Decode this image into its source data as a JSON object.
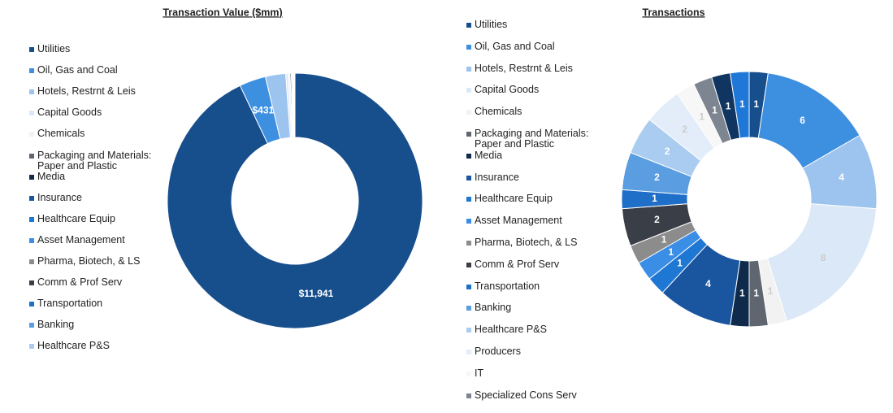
{
  "chart_data": [
    {
      "type": "donut",
      "title": "Transaction Value ($mm)",
      "categories": [
        "Utilities",
        "Oil, Gas and Coal",
        "Hotels, Restrnt & Leis",
        "Capital Goods",
        "Chemicals",
        "Packaging and Materials: Paper and Plastic",
        "Media",
        "Insurance",
        "Healthcare Equip",
        "Asset Management",
        "Pharma, Biotech, & LS",
        "Comm & Prof Serv",
        "Transportation",
        "Banking",
        "Healthcare P&S"
      ],
      "values": [
        11941,
        431,
        330,
        40,
        30,
        20,
        15,
        10,
        8,
        6,
        5,
        5,
        4,
        3,
        3
      ],
      "value_labels": [
        "$11,941",
        "$431",
        null,
        null,
        null,
        null,
        null,
        null,
        null,
        null,
        null,
        null,
        null,
        null,
        null
      ],
      "colors": [
        "#174f8d",
        "#3d8fe0",
        "#9dc3ef",
        "#dbe8f7",
        "#f2f2f2",
        "#5f6670",
        "#0f2a4a",
        "#1a56a0",
        "#1f77d4",
        "#3a8ee6",
        "#8c8c8c",
        "#3a3f47",
        "#1f6fc9",
        "#5a9de0",
        "#a9ccf0"
      ]
    },
    {
      "type": "donut",
      "title": "Transactions",
      "categories": [
        "Utilities",
        "Oil, Gas and Coal",
        "Hotels, Restrnt & Leis",
        "Capital Goods",
        "Chemicals",
        "Packaging and Materials: Paper and Plastic",
        "Media",
        "Insurance",
        "Healthcare Equip",
        "Asset Management",
        "Pharma, Biotech, & LS",
        "Comm & Prof Serv",
        "Transportation",
        "Banking",
        "Healthcare P&S",
        "Producers",
        "IT",
        "Specialized Cons Serv",
        null,
        null
      ],
      "values": [
        1,
        6,
        4,
        8,
        1,
        1,
        1,
        4,
        1,
        1,
        1,
        2,
        1,
        2,
        2,
        2,
        1,
        1,
        1,
        1
      ],
      "colors": [
        "#174f8d",
        "#3d8fe0",
        "#9dc3ef",
        "#dbe8f7",
        "#f2f2f2",
        "#5f6670",
        "#0f2a4a",
        "#1a56a0",
        "#1f77d4",
        "#3a8ee6",
        "#8c8c8c",
        "#3a3f47",
        "#1f6fc9",
        "#5a9de0",
        "#a9ccf0",
        "#e3edf9",
        "#f7f7f7",
        "#7d8590",
        "#0f3560",
        "#1f78d8"
      ]
    }
  ]
}
